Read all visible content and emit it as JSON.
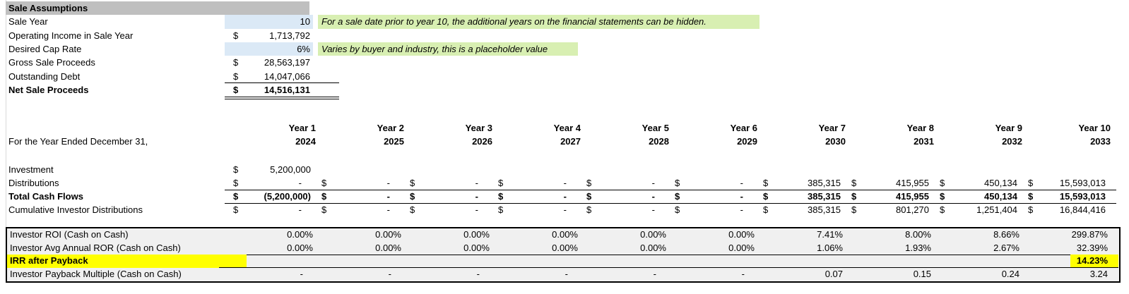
{
  "sale_assumptions": {
    "title": "Sale Assumptions",
    "rows": [
      {
        "label": "Sale Year",
        "value": "10",
        "highlight": true,
        "note": "For a sale date prior to year 10, the additional years on the financial statements can be hidden."
      },
      {
        "label": "Operating Income in Sale Year",
        "currency": "$",
        "value": "1,713,792"
      },
      {
        "label": "Desired Cap Rate",
        "value": "6%",
        "highlight": true,
        "note": "Varies by buyer and industry, this is a placeholder value"
      },
      {
        "label": "Gross Sale Proceeds",
        "currency": "$",
        "value": "28,563,197"
      },
      {
        "label": "Outstanding Debt",
        "currency": "$",
        "value": "14,047,066",
        "underline": "single"
      },
      {
        "label": "Net Sale Proceeds",
        "currency": "$",
        "value": "14,516,131",
        "bold": true,
        "underline": "double"
      }
    ]
  },
  "cash_flow": {
    "period_label": "For the Year Ended December 31,",
    "years": [
      {
        "label": "Year 1",
        "year": "2024"
      },
      {
        "label": "Year 2",
        "year": "2025"
      },
      {
        "label": "Year 3",
        "year": "2026"
      },
      {
        "label": "Year 4",
        "year": "2027"
      },
      {
        "label": "Year 5",
        "year": "2028"
      },
      {
        "label": "Year 6",
        "year": "2029"
      },
      {
        "label": "Year 7",
        "year": "2030"
      },
      {
        "label": "Year 8",
        "year": "2031"
      },
      {
        "label": "Year 9",
        "year": "2032"
      },
      {
        "label": "Year 10",
        "year": "2033"
      }
    ],
    "rows": [
      {
        "label": "Investment",
        "bold": false,
        "border_bottom": false,
        "cells": [
          {
            "d": "$",
            "v": "5,200,000"
          },
          null,
          null,
          null,
          null,
          null,
          null,
          null,
          null,
          null
        ]
      },
      {
        "label": "Distributions",
        "bold": false,
        "border_bottom": true,
        "cells": [
          {
            "d": "$",
            "v": "-"
          },
          {
            "d": "$",
            "v": "-"
          },
          {
            "d": "$",
            "v": "-"
          },
          {
            "d": "$",
            "v": "-"
          },
          {
            "d": "$",
            "v": "-"
          },
          {
            "d": "$",
            "v": "-"
          },
          {
            "d": "$",
            "v": "385,315"
          },
          {
            "d": "$",
            "v": "415,955"
          },
          {
            "d": "$",
            "v": "450,134"
          },
          {
            "d": "$",
            "v": "15,593,013"
          }
        ]
      },
      {
        "label": "Total Cash Flows",
        "bold": true,
        "border_bottom": true,
        "cells": [
          {
            "d": "$",
            "v": "(5,200,000)"
          },
          {
            "d": "$",
            "v": "-"
          },
          {
            "d": "$",
            "v": "-"
          },
          {
            "d": "$",
            "v": "-"
          },
          {
            "d": "$",
            "v": "-"
          },
          {
            "d": "$",
            "v": "-"
          },
          {
            "d": "$",
            "v": "385,315"
          },
          {
            "d": "$",
            "v": "415,955"
          },
          {
            "d": "$",
            "v": "450,134"
          },
          {
            "d": "$",
            "v": "15,593,013"
          }
        ]
      },
      {
        "label": "Cumulative Investor Distributions",
        "bold": false,
        "border_bottom": false,
        "cells": [
          {
            "d": "$",
            "v": "-"
          },
          {
            "d": "$",
            "v": "-"
          },
          {
            "d": "$",
            "v": "-"
          },
          {
            "d": "$",
            "v": "-"
          },
          {
            "d": "$",
            "v": "-"
          },
          {
            "d": "$",
            "v": "-"
          },
          {
            "d": "$",
            "v": "385,315"
          },
          {
            "d": "$",
            "v": "801,270"
          },
          {
            "d": "$",
            "v": "1,251,404"
          },
          {
            "d": "$",
            "v": "16,844,416"
          }
        ]
      }
    ]
  },
  "returns": {
    "rows": [
      {
        "label": "Investor ROI (Cash on Cash)",
        "line_below": false,
        "values": [
          "0.00%",
          "0.00%",
          "0.00%",
          "0.00%",
          "0.00%",
          "0.00%",
          "7.41%",
          "8.00%",
          "8.66%",
          "299.87%"
        ]
      },
      {
        "label": "Investor Avg Annual ROR (Cash on Cash)",
        "line_below": true,
        "values": [
          "0.00%",
          "0.00%",
          "0.00%",
          "0.00%",
          "0.00%",
          "0.00%",
          "1.06%",
          "1.93%",
          "2.67%",
          "32.39%"
        ]
      },
      {
        "label": "IRR after Payback",
        "bold": true,
        "highlight": true,
        "line_below": true,
        "values": [
          "",
          "",
          "",
          "",
          "",
          "",
          "",
          "",
          "",
          "14.23%"
        ]
      },
      {
        "label": "Investor Payback Multiple (Cash on Cash)",
        "line_below": false,
        "values": [
          "-",
          "-",
          "-",
          "-",
          "-",
          "-",
          "0.07",
          "0.15",
          "0.24",
          "3.24"
        ]
      }
    ]
  },
  "colors": {
    "header_gray": "#BFBFBF",
    "input_blue": "#DBE9F6",
    "note_green": "#D8EFB2",
    "highlight_yellow": "#FFFF00",
    "stats_bg": "#F0F0F0",
    "gridline_gray": "#D9D9D9",
    "border_black": "#000000"
  }
}
